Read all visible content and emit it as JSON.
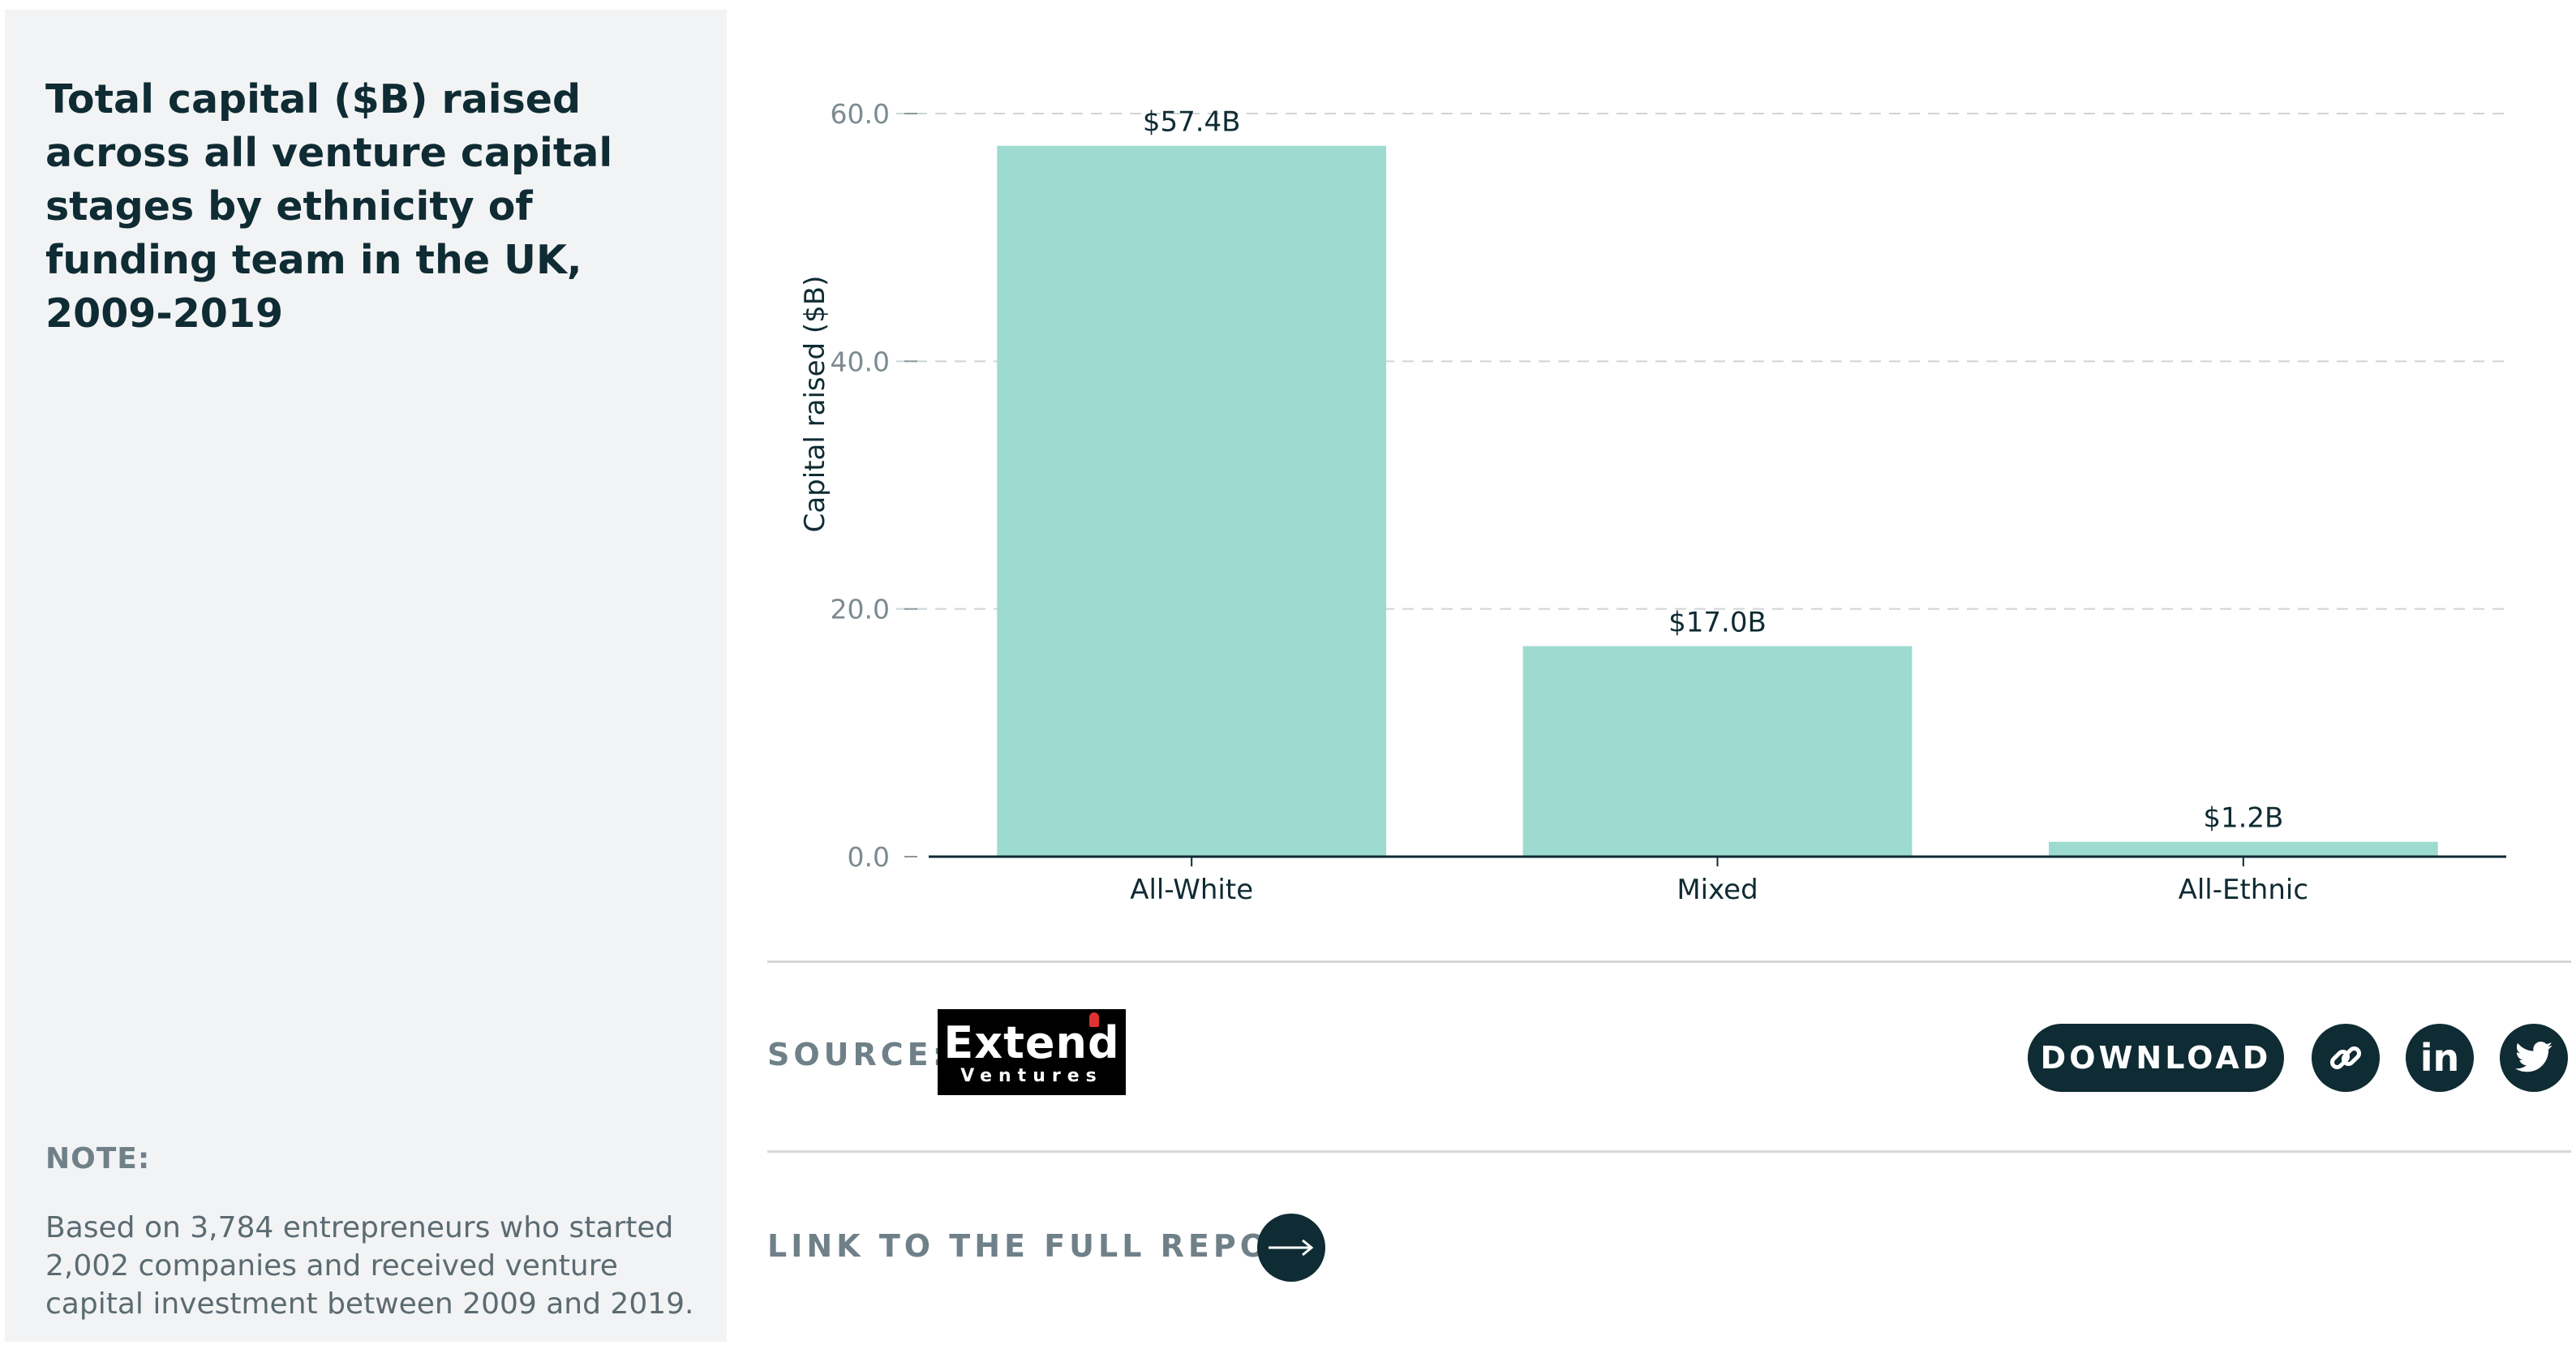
{
  "panel": {
    "title": "Total capital ($B) raised across all venture capital stages by ethnicity of funding team in the UK, 2009-2019",
    "note_label": "NOTE:",
    "note_text": "Based on 3,784 entrepreneurs who started 2,002 companies and received venture capital investment between 2009 and 2019."
  },
  "chart_data": {
    "type": "bar",
    "categories": [
      "All-White",
      "Mixed",
      "All-Ethnic"
    ],
    "values": [
      57.4,
      17.0,
      1.2
    ],
    "data_labels": [
      "$57.4B",
      "$17.0B",
      "$1.2B"
    ],
    "title": "Total capital ($B) raised across all venture capital stages by ethnicity of funding team in the UK, 2009-2019",
    "xlabel": "",
    "ylabel": "Capital raised ($B)",
    "ylim": [
      0,
      60
    ],
    "yticks": [
      "0.0",
      "20.0",
      "40.0",
      "60.0"
    ],
    "grid": true,
    "bar_color": "#9ddbd0"
  },
  "footer": {
    "source_label": "SOURCE:",
    "logo": {
      "main": "Extend",
      "sub": "Ventures"
    },
    "download_label": "DOWNLOAD",
    "link_icon": "link-icon",
    "linkedin_icon": "linkedin-icon",
    "linkedin_text": "in",
    "twitter_icon": "twitter-icon",
    "report_link_label": "LINK TO THE FULL REPORT",
    "arrow_icon": "arrow-right-icon"
  },
  "colors": {
    "dark": "#0f2b33",
    "muted": "#6f8088",
    "panel_bg": "#f2f3f4",
    "grid": "#cfd4d6"
  }
}
